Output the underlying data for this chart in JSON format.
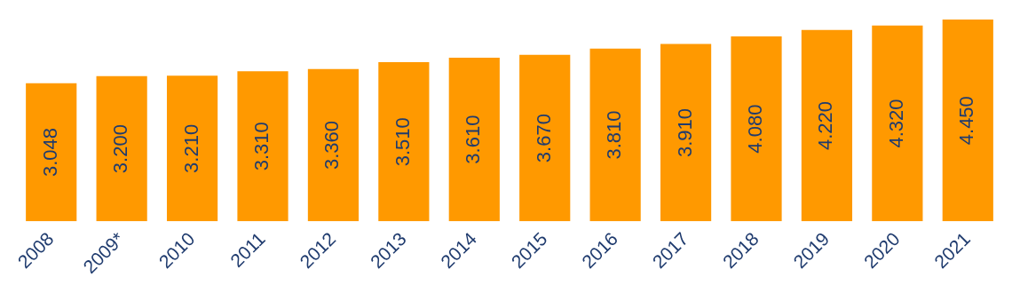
{
  "chart_data": {
    "type": "bar",
    "categories": [
      "2008",
      "2009*",
      "2010",
      "2011",
      "2012",
      "2013",
      "2014",
      "2015",
      "2016",
      "2017",
      "2018",
      "2019",
      "2020",
      "2021"
    ],
    "values": [
      3048,
      3200,
      3210,
      3310,
      3360,
      3510,
      3610,
      3670,
      3810,
      3910,
      4080,
      4220,
      4320,
      4450
    ],
    "value_labels": [
      "3.048",
      "3.200",
      "3.210",
      "3.310",
      "3.360",
      "3.510",
      "3.610",
      "3.670",
      "3.810",
      "3.910",
      "4.080",
      "4.220",
      "4.320",
      "4.450"
    ],
    "color": "#ff9900",
    "ylim": [
      0,
      4450
    ],
    "tick_labels": "x",
    "grid": false,
    "legend": false
  }
}
